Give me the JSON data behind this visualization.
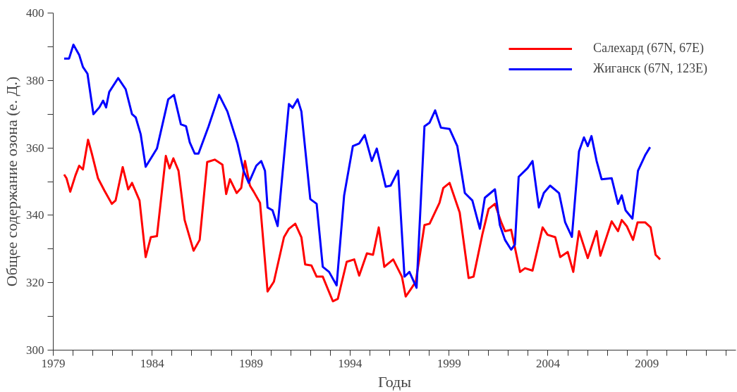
{
  "chart_data": {
    "type": "line",
    "xlabel": "Годы",
    "ylabel": "Общее содержание озона (е. Д.)",
    "xlim": [
      1979,
      2013.5
    ],
    "ylim": [
      300,
      400
    ],
    "xticks": [
      1979,
      {
        "value": 1980,
        "label": null
      },
      {
        "value": 1981,
        "label": null
      },
      {
        "value": 1982,
        "label": null
      },
      {
        "value": 1983,
        "label": null
      },
      1984,
      {
        "value": 1985,
        "label": null
      },
      {
        "value": 1986,
        "label": null
      },
      {
        "value": 1987,
        "label": null
      },
      {
        "value": 1988,
        "label": null
      },
      1989,
      {
        "value": 1990,
        "label": null
      },
      {
        "value": 1991,
        "label": null
      },
      {
        "value": 1992,
        "label": null
      },
      {
        "value": 1993,
        "label": null
      },
      1994,
      {
        "value": 1995,
        "label": null
      },
      {
        "value": 1996,
        "label": null
      },
      {
        "value": 1997,
        "label": null
      },
      {
        "value": 1998,
        "label": null
      },
      1999,
      {
        "value": 2000,
        "label": null
      },
      {
        "value": 2001,
        "label": null
      },
      {
        "value": 2002,
        "label": null
      },
      {
        "value": 2003,
        "label": null
      },
      2004,
      {
        "value": 2005,
        "label": null
      },
      {
        "value": 2006,
        "label": null
      },
      {
        "value": 2007,
        "label": null
      },
      {
        "value": 2008,
        "label": null
      },
      2009,
      {
        "value": 2010,
        "label": null
      },
      {
        "value": 2011,
        "label": null
      },
      {
        "value": 2012,
        "label": null
      },
      {
        "value": 2013,
        "label": null
      }
    ],
    "yticks": [
      300,
      {
        "value": 310,
        "label": null
      },
      320,
      {
        "value": 330,
        "label": null
      },
      340,
      {
        "value": 350,
        "label": null
      },
      360,
      {
        "value": 370,
        "label": null
      },
      380,
      {
        "value": 390,
        "label": null
      },
      400
    ],
    "grid": false,
    "legend": "top right",
    "marker": "none",
    "line_style": "solid",
    "series": [
      {
        "name": "Салехард (67N, 67E)",
        "color": "#ff0000",
        "x": [
          1979.55,
          1979.67,
          1979.86,
          1980.12,
          1980.31,
          1980.5,
          1980.76,
          1980.95,
          1981.26,
          1981.58,
          1981.96,
          1982.15,
          1982.51,
          1982.79,
          1982.98,
          1983.36,
          1983.67,
          1983.93,
          1984.24,
          1984.69,
          1984.88,
          1985.07,
          1985.33,
          1985.64,
          1986.09,
          1986.4,
          1986.78,
          1987.16,
          1987.55,
          1987.74,
          1987.93,
          1988.27,
          1988.5,
          1988.69,
          1988.94,
          1989.13,
          1989.45,
          1989.83,
          1990.15,
          1990.66,
          1990.91,
          1991.23,
          1991.54,
          1991.73,
          1992.05,
          1992.31,
          1992.62,
          1993.13,
          1993.38,
          1993.83,
          1994.21,
          1994.46,
          1994.85,
          1995.16,
          1995.45,
          1995.73,
          1996.18,
          1996.62,
          1996.81,
          1997.07,
          1997.32,
          1997.76,
          1998.02,
          1998.52,
          1998.71,
          1999.03,
          1999.54,
          1999.99,
          2000.24,
          2000.68,
          2001.0,
          2001.32,
          2001.64,
          2001.83,
          2002.14,
          2002.59,
          2002.84,
          2003.22,
          2003.73,
          2003.98,
          2004.37,
          2004.62,
          2005.0,
          2005.28,
          2005.57,
          2006.01,
          2006.46,
          2006.65,
          2007.22,
          2007.54,
          2007.73,
          2007.98,
          2008.3,
          2008.53,
          2008.91,
          2009.19,
          2009.44,
          2009.67
        ],
        "values": [
          352.1,
          351,
          347,
          351.8,
          354.7,
          353.6,
          362.4,
          358.3,
          351,
          347.4,
          343.4,
          344.4,
          354.3,
          347.7,
          349.6,
          344.4,
          327.6,
          333.5,
          333.8,
          357.6,
          353.9,
          356.9,
          353.2,
          338.6,
          329.5,
          332.7,
          355.8,
          356.5,
          355,
          346.3,
          350.7,
          346.6,
          348.1,
          356.1,
          348.8,
          347,
          343.7,
          317.4,
          320.3,
          333.5,
          336,
          337.5,
          333.5,
          325.4,
          325.1,
          321.8,
          321.8,
          314.5,
          315.2,
          326.2,
          326.9,
          322.1,
          328.7,
          328.3,
          336.4,
          324.7,
          326.9,
          321.8,
          315.9,
          318.1,
          320.3,
          337.1,
          337.5,
          343.7,
          348.1,
          349.6,
          340.8,
          321.4,
          321.8,
          334.2,
          341.9,
          343.4,
          337.9,
          335.3,
          335.7,
          323.2,
          324.3,
          323.6,
          336.4,
          334.2,
          333.5,
          327.6,
          329.1,
          323.2,
          335.3,
          327.3,
          335.3,
          328,
          338.2,
          335.3,
          338.6,
          336.8,
          332.7,
          337.9,
          337.9,
          336.4,
          328.3,
          326.9
        ]
      },
      {
        "name": "Жиганск (67N, 123E)",
        "color": "#0000ff",
        "x": [
          1979.55,
          1979.8,
          1980.02,
          1980.31,
          1980.5,
          1980.73,
          1981.03,
          1981.33,
          1981.52,
          1981.67,
          1981.83,
          1982.28,
          1982.66,
          1982.98,
          1983.17,
          1983.42,
          1983.67,
          1984.05,
          1984.24,
          1984.81,
          1985.1,
          1985.45,
          1985.71,
          1985.9,
          1986.15,
          1986.34,
          1986.85,
          1987.38,
          1987.8,
          1988.31,
          1988.62,
          1988.88,
          1989.26,
          1989.51,
          1989.7,
          1989.83,
          1990.08,
          1990.34,
          1990.91,
          1991.1,
          1991.35,
          1991.54,
          1991.99,
          1992.31,
          1992.62,
          1992.94,
          1993.32,
          1993.7,
          1994.14,
          1994.46,
          1994.74,
          1995.1,
          1995.35,
          1995.8,
          1996.05,
          1996.43,
          1996.75,
          1997.0,
          1997.36,
          1997.76,
          1998.02,
          1998.3,
          1998.59,
          1999.03,
          1999.42,
          1999.8,
          2000.18,
          2000.56,
          2000.81,
          2001.32,
          2001.57,
          2001.83,
          2002.14,
          2002.33,
          2002.52,
          2002.97,
          2003.22,
          2003.54,
          2003.79,
          2004.11,
          2004.56,
          2004.87,
          2005.21,
          2005.57,
          2005.82,
          2006.01,
          2006.2,
          2006.46,
          2006.71,
          2007.22,
          2007.54,
          2007.73,
          2007.92,
          2008.27,
          2008.55,
          2008.93,
          2009.16
        ],
        "values": [
          386.5,
          386.5,
          390.6,
          387.6,
          384,
          382,
          370,
          372,
          374,
          372,
          376.6,
          380.7,
          377.4,
          370,
          369,
          364,
          354.4,
          358,
          359.8,
          374.4,
          375.7,
          367,
          366.4,
          361.6,
          358.3,
          358.3,
          366.4,
          375.7,
          370.8,
          361.3,
          353.2,
          349.6,
          354.7,
          356.1,
          353.2,
          342.3,
          341.5,
          336.8,
          373,
          371.9,
          374.4,
          370.8,
          344.8,
          343.4,
          324.7,
          323.2,
          319.2,
          345.9,
          360.5,
          361.3,
          363.8,
          356.1,
          359.8,
          348.5,
          348.8,
          353.2,
          321.8,
          323.2,
          318.5,
          366.4,
          367.5,
          371.1,
          366,
          365.6,
          360.5,
          346.6,
          344.4,
          336,
          345.2,
          347.7,
          337.1,
          332.7,
          329.8,
          331.3,
          351.4,
          354,
          356.1,
          342.3,
          346.6,
          348.8,
          346.6,
          337.9,
          333.6,
          359,
          363.1,
          360.5,
          363.5,
          356.1,
          350.7,
          351,
          343.4,
          345.9,
          341.5,
          339,
          353.2,
          358,
          360.2
        ]
      }
    ]
  }
}
